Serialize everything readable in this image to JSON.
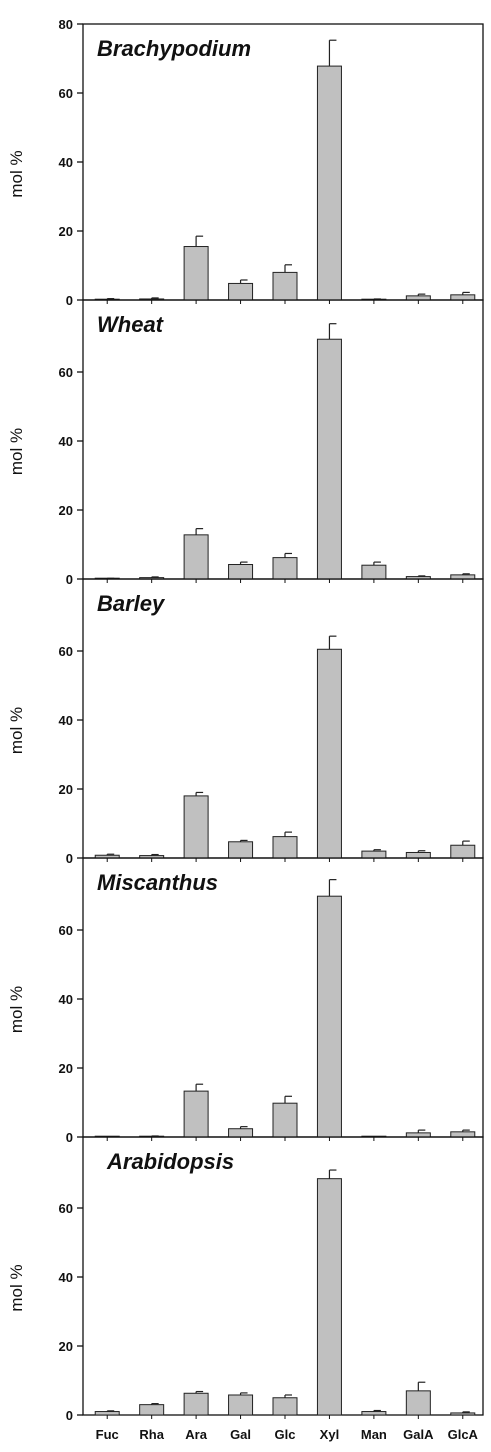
{
  "colors": {
    "bar_fill": "#c0c0c0",
    "bar_stroke": "#222222",
    "axis": "#111111"
  },
  "chart_data": [
    {
      "type": "bar",
      "title": "Brachypodium",
      "ylabel": "mol %",
      "ylim": [
        0,
        80
      ],
      "yticks": [
        0,
        20,
        40,
        60,
        80
      ],
      "categories": [
        "Fuc",
        "Rha",
        "Ara",
        "Gal",
        "Glc",
        "Xyl",
        "Man",
        "GalA",
        "GlcA"
      ],
      "values": [
        0.2,
        0.3,
        15.5,
        4.8,
        8.0,
        67.8,
        0.2,
        1.2,
        1.5
      ],
      "errors": [
        0.2,
        0.3,
        3.0,
        1.0,
        2.2,
        7.5,
        0.1,
        0.5,
        0.7
      ]
    },
    {
      "type": "bar",
      "title": "Wheat",
      "ylabel": "mol %",
      "ylim": [
        0,
        75
      ],
      "yticks": [
        0,
        20,
        40,
        60
      ],
      "categories": [
        "Fuc",
        "Rha",
        "Ara",
        "Gal",
        "Glc",
        "Xyl",
        "Man",
        "GalA",
        "GlcA"
      ],
      "values": [
        0.1,
        0.4,
        12.8,
        4.2,
        6.2,
        69.5,
        4.0,
        0.7,
        1.2
      ],
      "errors": [
        0.1,
        0.2,
        1.8,
        0.7,
        1.2,
        4.5,
        0.9,
        0.2,
        0.3
      ]
    },
    {
      "type": "bar",
      "title": "Barley",
      "ylabel": "mol %",
      "ylim": [
        0,
        75
      ],
      "yticks": [
        0,
        20,
        40,
        60
      ],
      "categories": [
        "Fuc",
        "Rha",
        "Ara",
        "Gal",
        "Glc",
        "Xyl",
        "Man",
        "GalA",
        "GlcA"
      ],
      "values": [
        0.8,
        0.7,
        18.0,
        4.7,
        6.2,
        60.5,
        2.0,
        1.6,
        3.7
      ],
      "errors": [
        0.3,
        0.3,
        1.0,
        0.4,
        1.3,
        3.8,
        0.4,
        0.5,
        1.2
      ]
    },
    {
      "type": "bar",
      "title": "Miscanthus",
      "ylabel": "mol %",
      "ylim": [
        0,
        75
      ],
      "yticks": [
        0,
        20,
        40,
        60
      ],
      "categories": [
        "Fuc",
        "Rha",
        "Ara",
        "Gal",
        "Glc",
        "Xyl",
        "Man",
        "GalA",
        "GlcA"
      ],
      "values": [
        0,
        0.2,
        13.3,
        2.4,
        9.8,
        69.8,
        0,
        1.2,
        1.5
      ],
      "errors": [
        0,
        0.1,
        2.0,
        0.6,
        2.0,
        4.8,
        0,
        0.8,
        0.5
      ]
    },
    {
      "type": "bar",
      "title": "Arabidopsis",
      "ylabel": "mol %",
      "ylim": [
        0,
        75
      ],
      "yticks": [
        0,
        20,
        40,
        60
      ],
      "categories": [
        "Fuc",
        "Rha",
        "Ara",
        "Gal",
        "Glc",
        "Xyl",
        "Man",
        "GalA",
        "GlcA"
      ],
      "values": [
        1.0,
        3.0,
        6.3,
        5.8,
        5.0,
        68.5,
        1.0,
        7.0,
        0.6
      ],
      "errors": [
        0.2,
        0.3,
        0.5,
        0.6,
        0.8,
        2.5,
        0.3,
        2.5,
        0.3
      ]
    }
  ]
}
